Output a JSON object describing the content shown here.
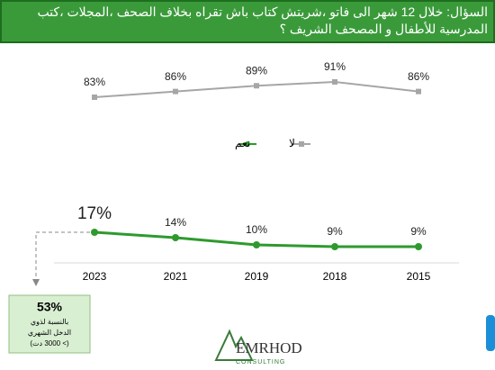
{
  "header": {
    "title": "السؤال: خلال 12 شهر الى فاتو ،شريتش كتاب باش تقراه بخلاف الصحف ،المجلات ،كتب المدرسية للأطفال و المصحف الشريف ؟"
  },
  "chart_data": {
    "type": "line",
    "categories": [
      "2023",
      "2021",
      "2019",
      "2018",
      "2015"
    ],
    "series": [
      {
        "name": "لا",
        "color": "#a6a6a6",
        "values": [
          83,
          86,
          89,
          91,
          86
        ],
        "value_labels": [
          "83%",
          "86%",
          "89%",
          "91%",
          "86%"
        ]
      },
      {
        "name": "نعم",
        "color": "#2e9a2e",
        "values": [
          17,
          14,
          10,
          9,
          9
        ],
        "value_labels": [
          "17%",
          "14%",
          "10%",
          "9%",
          "9%"
        ]
      }
    ]
  },
  "note": {
    "value": "53%",
    "lines": [
      "بالنسبة لذوي",
      "الدخل الشهري",
      "(> 3000 دت)"
    ]
  },
  "logo": {
    "name": "EMRHOD",
    "tagline": "CONSULTING"
  }
}
